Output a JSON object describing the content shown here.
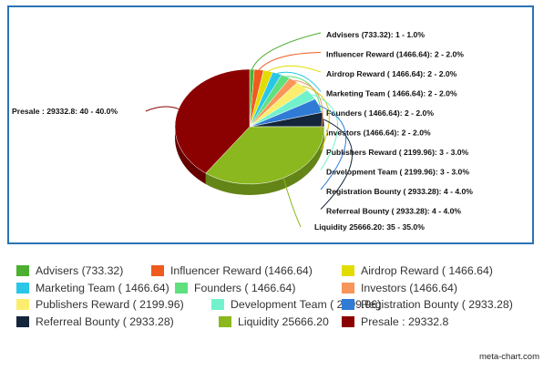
{
  "chart_data": {
    "type": "pie",
    "title": "",
    "slices": [
      {
        "name": "Advisers",
        "value": 733.32,
        "legend": "Advisers (733.32)",
        "label": "Advisers (733.32): 1 - 1.0%",
        "color": "#4caf30"
      },
      {
        "name": "Influencer Reward",
        "value": 1466.64,
        "legend": "Influencer Reward (1466.64)",
        "label": "Influencer Reward (1466.64): 2 - 2.0%",
        "color": "#f05a1e"
      },
      {
        "name": "Airdrop Reward",
        "value": 1466.64,
        "legend": "Airdrop Reward ( 1466.64)",
        "label": "Airdrop Reward ( 1466.64): 2 - 2.0%",
        "color": "#e3dc00"
      },
      {
        "name": "Marketing Team",
        "value": 1466.64,
        "legend": "Marketing Team ( 1466.64)",
        "label": "Marketing Team ( 1466.64): 2 - 2.0%",
        "color": "#29c6e8"
      },
      {
        "name": "Founders",
        "value": 1466.64,
        "legend": "Founders ( 1466.64)",
        "label": "Founders ( 1466.64): 2 - 2.0%",
        "color": "#5fe07e"
      },
      {
        "name": "Investors",
        "value": 1466.64,
        "legend": "Investors (1466.64)",
        "label": "Investors (1466.64): 2 - 2.0%",
        "color": "#f7955a"
      },
      {
        "name": "Publishers Reward",
        "value": 2199.96,
        "legend": "Publishers Reward ( 2199.96)",
        "label": "Publishers Reward ( 2199.96): 3 - 3.0%",
        "color": "#fbee6e"
      },
      {
        "name": "Development Team",
        "value": 2199.96,
        "legend": "Development Team ( 2199.96)",
        "label": "Development Team ( 2199.96): 3 - 3.0%",
        "color": "#72f2cc"
      },
      {
        "name": "Registration Bounty",
        "value": 2933.28,
        "legend": "Registration Bounty ( 2933.28)",
        "label": "Registration Bounty ( 2933.28): 4 - 4.0%",
        "color": "#2f7bd6"
      },
      {
        "name": "Referreal Bounty",
        "value": 2933.28,
        "legend": "Referreal Bounty ( 2933.28)",
        "label": "Referreal Bounty ( 2933.28): 4 - 4.0%",
        "color": "#13263b"
      },
      {
        "name": "Liquidity",
        "value": 25666.2,
        "legend": "Liquidity 25666.20",
        "label": "Liquidity 25666.20: 35 - 35.0%",
        "color": "#8ab81e"
      },
      {
        "name": "Presale",
        "value": 29332.8,
        "legend": "Presale : 29332.8",
        "label": "Presale : 29332.8: 40 - 40.0%",
        "color": "#8b0000"
      }
    ]
  },
  "credit": "meta-chart.com"
}
